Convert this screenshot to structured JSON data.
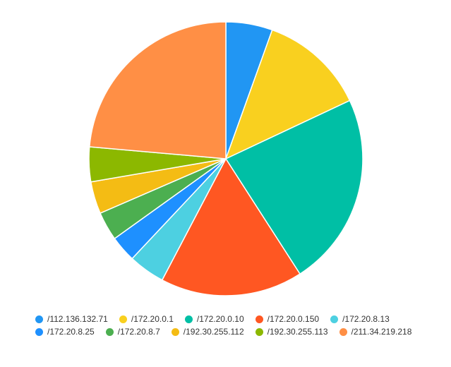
{
  "chart_data": {
    "type": "pie",
    "title": "",
    "legend_position": "bottom",
    "categories": [
      "/112.136.132.71",
      "/172.20.0.1",
      "/172.20.0.10",
      "/172.20.0.150",
      "/172.20.8.13",
      "/172.20.8.25",
      "/172.20.8.7",
      "/192.30.255.112",
      "/192.30.255.113",
      "/211.34.219.218"
    ],
    "values": [
      5.5,
      12.5,
      22.9,
      16.8,
      4.3,
      3.1,
      3.4,
      3.8,
      4.1,
      23.6
    ],
    "colors": [
      "#2196f3",
      "#f9d01f",
      "#00bfa5",
      "#ff5722",
      "#4dd0e1",
      "#1e90ff",
      "#4caf50",
      "#f4bc14",
      "#8cb800",
      "#ff8f45"
    ]
  }
}
